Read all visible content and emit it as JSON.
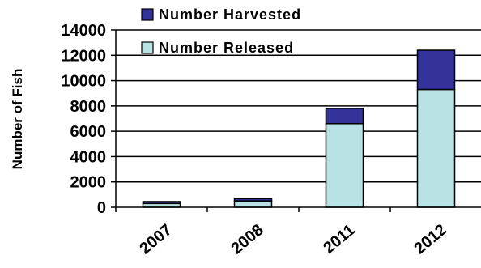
{
  "chart_data": {
    "type": "bar",
    "stacked": true,
    "categories": [
      "2007",
      "2008",
      "2011",
      "2012"
    ],
    "series": [
      {
        "name": "Number Released",
        "color": "#b8e2e4",
        "values": [
          300,
          500,
          6600,
          9300
        ]
      },
      {
        "name": "Number Harvested",
        "color": "#333399",
        "values": [
          150,
          180,
          1200,
          3100
        ]
      }
    ],
    "ylabel": "Number of Fish",
    "xlabel": "",
    "ylim": [
      0,
      14000
    ],
    "yticks": [
      "0",
      "2000",
      "4000",
      "6000",
      "8000",
      "10000",
      "12000",
      "14000"
    ],
    "grid": "horizontal",
    "legend_position": "top-left"
  }
}
